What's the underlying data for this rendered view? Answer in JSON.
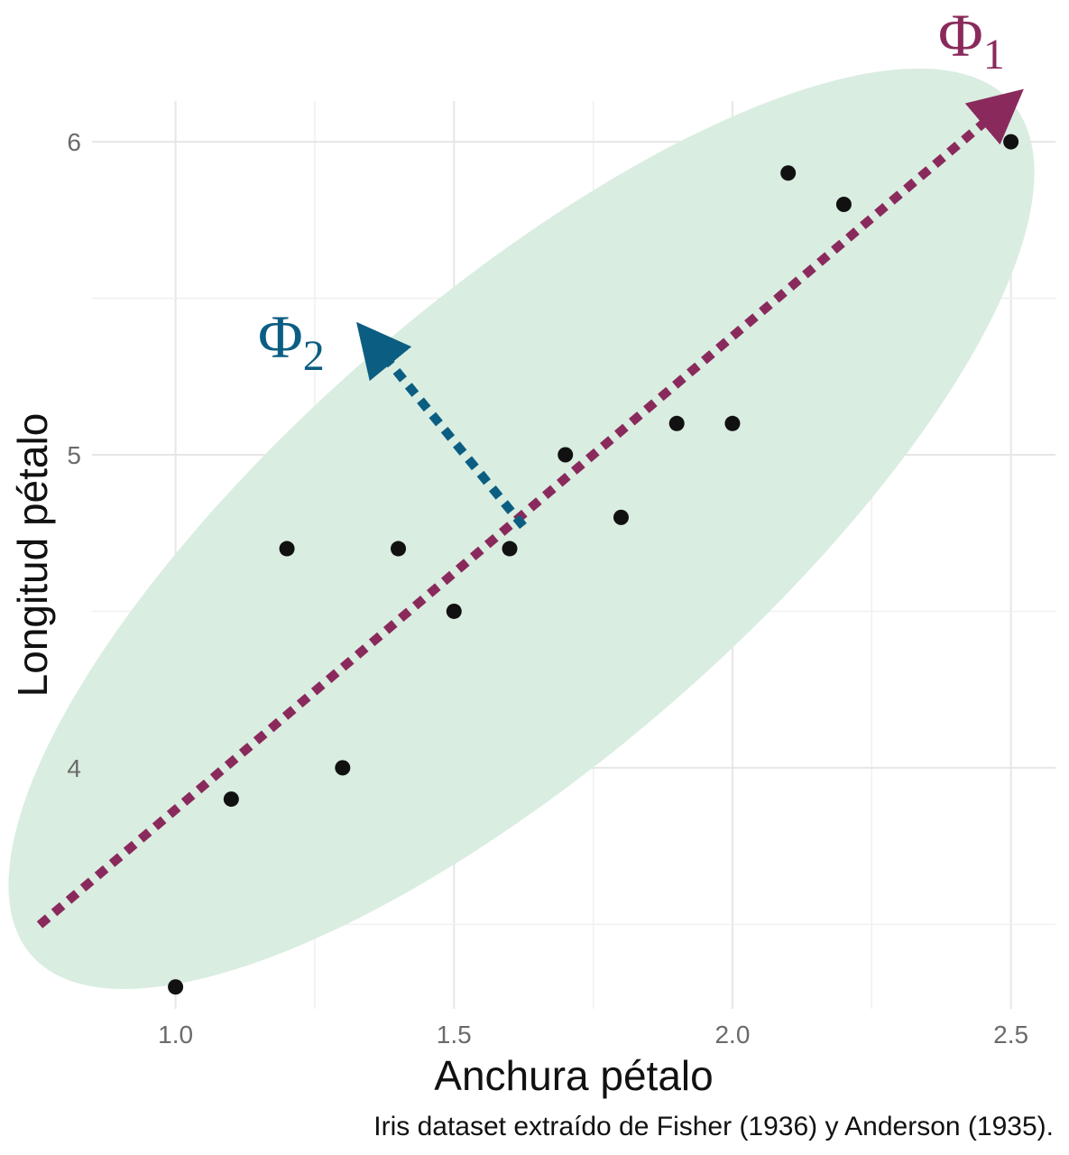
{
  "chart_data": {
    "type": "scatter",
    "xlabel": "Anchura pétalo",
    "ylabel": "Longitud pétalo",
    "caption": "Iris dataset extraído de Fisher (1936) y Anderson (1935).",
    "xlim": [
      0.85,
      2.58
    ],
    "ylim": [
      3.23,
      6.13
    ],
    "x_ticks": [
      1.0,
      1.5,
      2.0,
      2.5
    ],
    "x_tick_labels": [
      "1.0",
      "1.5",
      "2.0",
      "2.5"
    ],
    "y_ticks": [
      4,
      5,
      6
    ],
    "y_tick_labels": [
      "4",
      "5",
      "6"
    ],
    "grid": true,
    "points": [
      {
        "x": 1.0,
        "y": 3.3
      },
      {
        "x": 1.1,
        "y": 3.9
      },
      {
        "x": 1.2,
        "y": 4.7
      },
      {
        "x": 1.3,
        "y": 4.0
      },
      {
        "x": 1.4,
        "y": 4.7
      },
      {
        "x": 1.5,
        "y": 4.5
      },
      {
        "x": 1.6,
        "y": 4.7
      },
      {
        "x": 1.7,
        "y": 5.0
      },
      {
        "x": 1.8,
        "y": 4.8
      },
      {
        "x": 1.9,
        "y": 5.1
      },
      {
        "x": 2.0,
        "y": 5.1
      },
      {
        "x": 2.1,
        "y": 5.9
      },
      {
        "x": 2.2,
        "y": 5.8
      },
      {
        "x": 2.5,
        "y": 6.0
      }
    ],
    "ellipse_color": "#d9ede1",
    "point_color": "#111111",
    "annotations": {
      "phi1": {
        "symbol": "Φ",
        "subscript": "1",
        "color": "#8a2a5c"
      },
      "phi2": {
        "symbol": "Φ",
        "subscript": "2",
        "color": "#0b5e82"
      }
    }
  }
}
